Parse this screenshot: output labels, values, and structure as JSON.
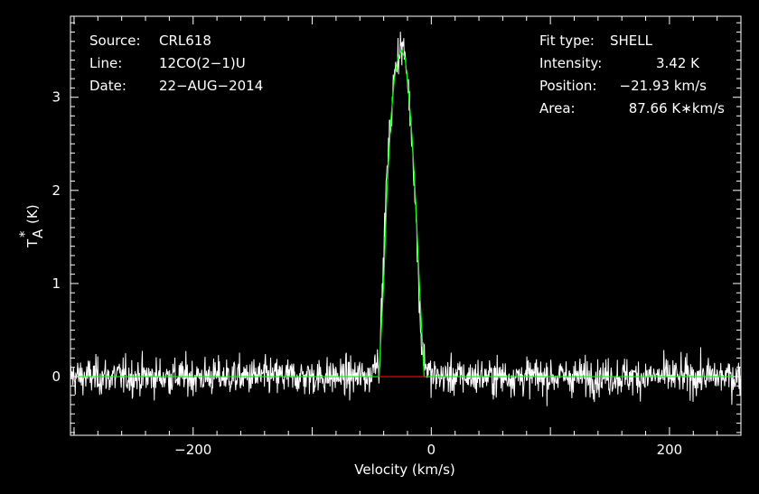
{
  "chart_data": {
    "type": "line",
    "xlabel": "Velocity (km/s)",
    "ylabel": "T",
    "ylabel_sub": "A",
    "ylabel_sup": "*",
    "ylabel_unit": "(K)",
    "xlim": [
      -303,
      260
    ],
    "ylim": [
      -0.63,
      3.87
    ],
    "x_ticks": [
      -200,
      0,
      200
    ],
    "x_tick_labels": [
      "−200",
      "0",
      "200"
    ],
    "y_ticks": [
      0,
      1,
      2,
      3
    ],
    "y_tick_labels": [
      "0",
      "1",
      "2",
      "3"
    ],
    "grid": false,
    "colors": {
      "background": "#000000",
      "spectrum": "#ffffff",
      "fit": "#00ff00",
      "baseline_window": "#ff0000",
      "frame": "#ffffff"
    },
    "header": {
      "source_label": "Source:",
      "source_value": "CRL618",
      "line_label": "Line:",
      "line_value": "12CO(2−1)U",
      "date_label": "Date:",
      "date_value": "22−AUG−2014"
    },
    "fit_info": {
      "type_label": "Fit type:",
      "type_value": "SHELL",
      "intensity_label": "Intensity:",
      "intensity_value": "3.42 K",
      "position_label": "Position:",
      "position_value": "−21.93 km/s",
      "area_label": "Area:",
      "area_value": "87.66 K∗km/s"
    },
    "series": [
      {
        "name": "spectrum",
        "noise_rms": 0.1,
        "x": [
          -303,
          -50,
          -47,
          -44,
          -41,
          -38,
          -35,
          -32,
          -29,
          -26,
          -23,
          -20,
          -17,
          -14,
          -11,
          -8,
          -5,
          0,
          260
        ],
        "y": [
          0,
          0,
          0.25,
          0.1,
          0.9,
          2.0,
          2.6,
          3.1,
          3.4,
          3.55,
          3.5,
          3.2,
          2.7,
          2.1,
          1.1,
          0.3,
          0.15,
          0,
          0
        ]
      },
      {
        "name": "fit",
        "x": [
          -303,
          -44,
          -40,
          -37,
          -34,
          -31,
          -28,
          -25,
          -22,
          -19,
          -16,
          -13,
          -10,
          -6,
          260
        ],
        "y": [
          0,
          0,
          1.0,
          2.05,
          2.75,
          3.2,
          3.42,
          3.5,
          3.42,
          3.05,
          2.55,
          1.85,
          1.0,
          0,
          0
        ]
      },
      {
        "name": "baseline-window",
        "x": [
          -44,
          -5
        ],
        "y": [
          0,
          0
        ]
      }
    ]
  }
}
